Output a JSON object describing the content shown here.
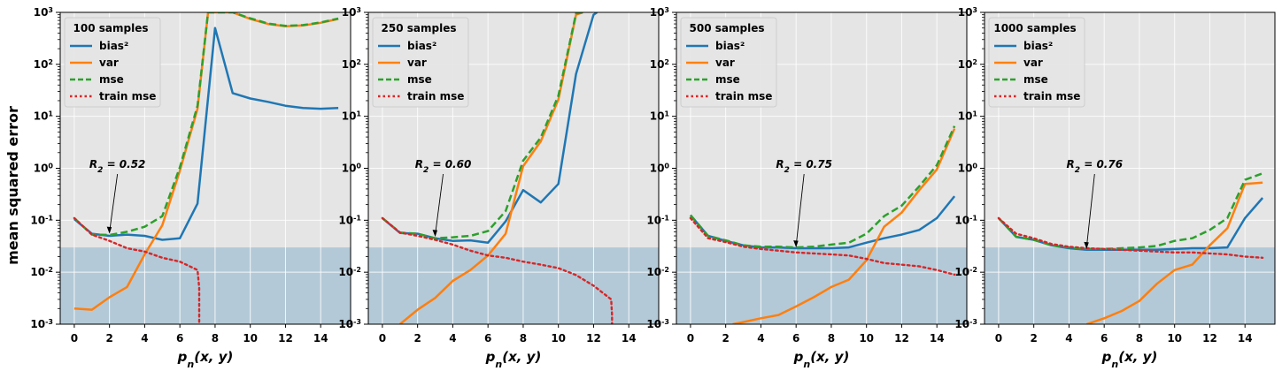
{
  "figure": {
    "ylabel": "mean squared error",
    "legend_labels": [
      "bias²",
      "var",
      "mse",
      "train mse"
    ],
    "colors": {
      "bias2": "#1f77b4",
      "var": "#ff7f0e",
      "mse": "#2ca02c",
      "train_mse": "#d62728",
      "axes_bg": "#e5e5e5",
      "shade": "#b3c9d7",
      "grid": "#ffffff"
    }
  },
  "chart_data": [
    {
      "type": "line",
      "title": "100 samples",
      "xlabel": "p_n(x, y)",
      "xlim": [
        -0.8,
        15.7
      ],
      "ylim": [
        0.001,
        1000
      ],
      "yscale": "log",
      "xticks": [
        0,
        2,
        4,
        6,
        8,
        10,
        12,
        14
      ],
      "shaded_region_y": [
        0.001,
        0.03
      ],
      "legend_placement": "upper-left",
      "grid": true,
      "annotation": {
        "text": "R_2 = 0.52",
        "point": [
          2,
          0.055
        ]
      },
      "series": [
        {
          "name": "bias²",
          "style": "solid",
          "x": [
            0,
            1,
            2,
            3,
            4,
            5,
            6,
            7,
            8,
            9,
            10,
            11,
            12,
            13,
            14,
            15
          ],
          "y": [
            0.105,
            0.055,
            0.05,
            0.053,
            0.05,
            0.042,
            0.045,
            0.21,
            500,
            28,
            22,
            19,
            16,
            14.5,
            14,
            14.5
          ]
        },
        {
          "name": "var",
          "style": "solid",
          "x": [
            0,
            1,
            2,
            3,
            4,
            5,
            6,
            7,
            7.6,
            8,
            9,
            10,
            11,
            12,
            13,
            14,
            15
          ],
          "y": [
            0.002,
            0.0019,
            0.0033,
            0.0052,
            0.022,
            0.08,
            0.9,
            14,
            1000,
            1000,
            1000,
            750,
            600,
            540,
            560,
            630,
            750
          ]
        },
        {
          "name": "mse",
          "style": "dashed",
          "x": [
            0,
            1,
            2,
            3,
            4,
            5,
            6,
            7,
            7.6,
            8,
            9,
            10,
            11,
            12,
            13,
            14,
            15
          ],
          "y": [
            0.11,
            0.053,
            0.052,
            0.06,
            0.075,
            0.12,
            1.05,
            16,
            1000,
            1000,
            1000,
            770,
            610,
            550,
            570,
            640,
            760
          ]
        },
        {
          "name": "train mse",
          "style": "dotted",
          "x": [
            0,
            1,
            2,
            3,
            4,
            5,
            6,
            7,
            7.1,
            7.1
          ],
          "y": [
            0.11,
            0.053,
            0.04,
            0.029,
            0.025,
            0.019,
            0.016,
            0.011,
            0.005,
            0.001
          ]
        }
      ]
    },
    {
      "type": "line",
      "title": "250 samples",
      "xlabel": "p_n(x, y)",
      "xlim": [
        -0.8,
        15.7
      ],
      "ylim": [
        0.001,
        1000
      ],
      "yscale": "log",
      "xticks": [
        0,
        2,
        4,
        6,
        8,
        10,
        12,
        14
      ],
      "shaded_region_y": [
        0.001,
        0.03
      ],
      "legend_placement": "upper-left",
      "grid": true,
      "annotation": {
        "text": "R_2 = 0.60",
        "point": [
          3,
          0.048
        ]
      },
      "series": [
        {
          "name": "bias²",
          "style": "solid",
          "x": [
            0,
            1,
            2,
            3,
            4,
            5,
            6,
            7,
            8,
            9,
            10,
            11,
            12,
            12.2
          ],
          "y": [
            0.11,
            0.057,
            0.055,
            0.045,
            0.04,
            0.041,
            0.037,
            0.095,
            0.38,
            0.22,
            0.5,
            65,
            900,
            1000
          ]
        },
        {
          "name": "var",
          "style": "solid",
          "x": [
            1,
            2,
            3,
            4,
            5,
            6,
            7,
            8,
            9,
            10,
            11,
            11.4
          ],
          "y": [
            0.001,
            0.0019,
            0.0032,
            0.0068,
            0.011,
            0.021,
            0.055,
            1.1,
            3.3,
            21,
            900,
            1000
          ]
        },
        {
          "name": "mse",
          "style": "dashed",
          "x": [
            0,
            1,
            2,
            3,
            4,
            5,
            6,
            7,
            8,
            9,
            10,
            11,
            11.4
          ],
          "y": [
            0.11,
            0.058,
            0.055,
            0.045,
            0.047,
            0.05,
            0.062,
            0.15,
            1.4,
            3.9,
            25,
            950,
            1000
          ]
        },
        {
          "name": "train mse",
          "style": "dotted",
          "x": [
            0,
            1,
            2,
            3,
            4,
            5,
            6,
            7,
            8,
            9,
            10,
            11,
            12,
            13,
            13.05,
            13.05
          ],
          "y": [
            0.11,
            0.058,
            0.05,
            0.042,
            0.034,
            0.026,
            0.021,
            0.019,
            0.016,
            0.014,
            0.012,
            0.0088,
            0.0055,
            0.003,
            0.0015,
            0.001
          ]
        }
      ]
    },
    {
      "type": "line",
      "title": "500 samples",
      "xlabel": "p_n(x, y)",
      "xlim": [
        -0.8,
        15.7
      ],
      "ylim": [
        0.001,
        1000
      ],
      "yscale": "log",
      "xticks": [
        0,
        2,
        4,
        6,
        8,
        10,
        12,
        14
      ],
      "shaded_region_y": [
        0.001,
        0.03
      ],
      "legend_placement": "upper-left",
      "grid": true,
      "annotation": {
        "text": "R_2 = 0.75",
        "point": [
          6,
          0.03
        ]
      },
      "series": [
        {
          "name": "bias²",
          "style": "solid",
          "x": [
            0,
            1,
            2,
            3,
            4,
            5,
            6,
            7,
            8,
            9,
            10,
            11,
            12,
            13,
            14,
            15
          ],
          "y": [
            0.125,
            0.05,
            0.04,
            0.033,
            0.03,
            0.03,
            0.029,
            0.029,
            0.029,
            0.03,
            0.037,
            0.045,
            0.053,
            0.065,
            0.11,
            0.29
          ]
        },
        {
          "name": "var",
          "style": "solid",
          "x": [
            2.4,
            3,
            4,
            5,
            6,
            7,
            8,
            9,
            10,
            11,
            12,
            13,
            14,
            15
          ],
          "y": [
            0.001,
            0.0011,
            0.0013,
            0.0015,
            0.0022,
            0.0033,
            0.0052,
            0.0072,
            0.017,
            0.075,
            0.14,
            0.38,
            0.95,
            5.8
          ]
        },
        {
          "name": "mse",
          "style": "dashed",
          "x": [
            0,
            1,
            2,
            3,
            4,
            5,
            6,
            7,
            8,
            9,
            10,
            11,
            12,
            13,
            14,
            15
          ],
          "y": [
            0.125,
            0.05,
            0.041,
            0.033,
            0.031,
            0.031,
            0.03,
            0.031,
            0.034,
            0.037,
            0.055,
            0.12,
            0.19,
            0.45,
            1.15,
            6.5
          ]
        },
        {
          "name": "train mse",
          "style": "dotted",
          "x": [
            0,
            1,
            2,
            3,
            4,
            5,
            6,
            7,
            8,
            9,
            10,
            11,
            12,
            13,
            14,
            15
          ],
          "y": [
            0.11,
            0.045,
            0.038,
            0.031,
            0.028,
            0.026,
            0.024,
            0.023,
            0.022,
            0.021,
            0.018,
            0.015,
            0.014,
            0.013,
            0.011,
            0.009
          ]
        }
      ]
    },
    {
      "type": "line",
      "title": "1000 samples",
      "xlabel": "p_n(x, y)",
      "xlim": [
        -0.8,
        15.7
      ],
      "ylim": [
        0.001,
        1000
      ],
      "yscale": "log",
      "xticks": [
        0,
        2,
        4,
        6,
        8,
        10,
        12,
        14
      ],
      "shaded_region_y": [
        0.001,
        0.03
      ],
      "legend_placement": "upper-left",
      "grid": true,
      "annotation": {
        "text": "R_2 = 0.76",
        "point": [
          5,
          0.028
        ]
      },
      "series": [
        {
          "name": "bias²",
          "style": "solid",
          "x": [
            0,
            1,
            2,
            3,
            4,
            5,
            6,
            7,
            8,
            9,
            10,
            11,
            12,
            13,
            14,
            15
          ],
          "y": [
            0.11,
            0.048,
            0.042,
            0.033,
            0.029,
            0.027,
            0.027,
            0.027,
            0.027,
            0.027,
            0.028,
            0.029,
            0.029,
            0.03,
            0.11,
            0.27
          ]
        },
        {
          "name": "var",
          "style": "solid",
          "x": [
            5,
            6,
            7,
            8,
            9,
            10,
            11,
            12,
            13,
            14,
            15
          ],
          "y": [
            0.001,
            0.0013,
            0.0018,
            0.0028,
            0.006,
            0.011,
            0.014,
            0.033,
            0.07,
            0.5,
            0.53
          ]
        },
        {
          "name": "mse",
          "style": "dashed",
          "x": [
            0,
            1,
            2,
            3,
            4,
            5,
            6,
            7,
            8,
            9,
            10,
            11,
            12,
            13,
            14,
            15
          ],
          "y": [
            0.11,
            0.048,
            0.042,
            0.033,
            0.03,
            0.028,
            0.028,
            0.029,
            0.03,
            0.032,
            0.04,
            0.045,
            0.065,
            0.11,
            0.6,
            0.8
          ]
        },
        {
          "name": "train mse",
          "style": "dotted",
          "x": [
            0,
            1,
            2,
            3,
            4,
            5,
            6,
            7,
            8,
            9,
            10,
            11,
            12,
            13,
            14,
            15
          ],
          "y": [
            0.11,
            0.055,
            0.045,
            0.035,
            0.031,
            0.029,
            0.028,
            0.027,
            0.026,
            0.025,
            0.024,
            0.024,
            0.023,
            0.022,
            0.02,
            0.019
          ]
        }
      ]
    }
  ]
}
